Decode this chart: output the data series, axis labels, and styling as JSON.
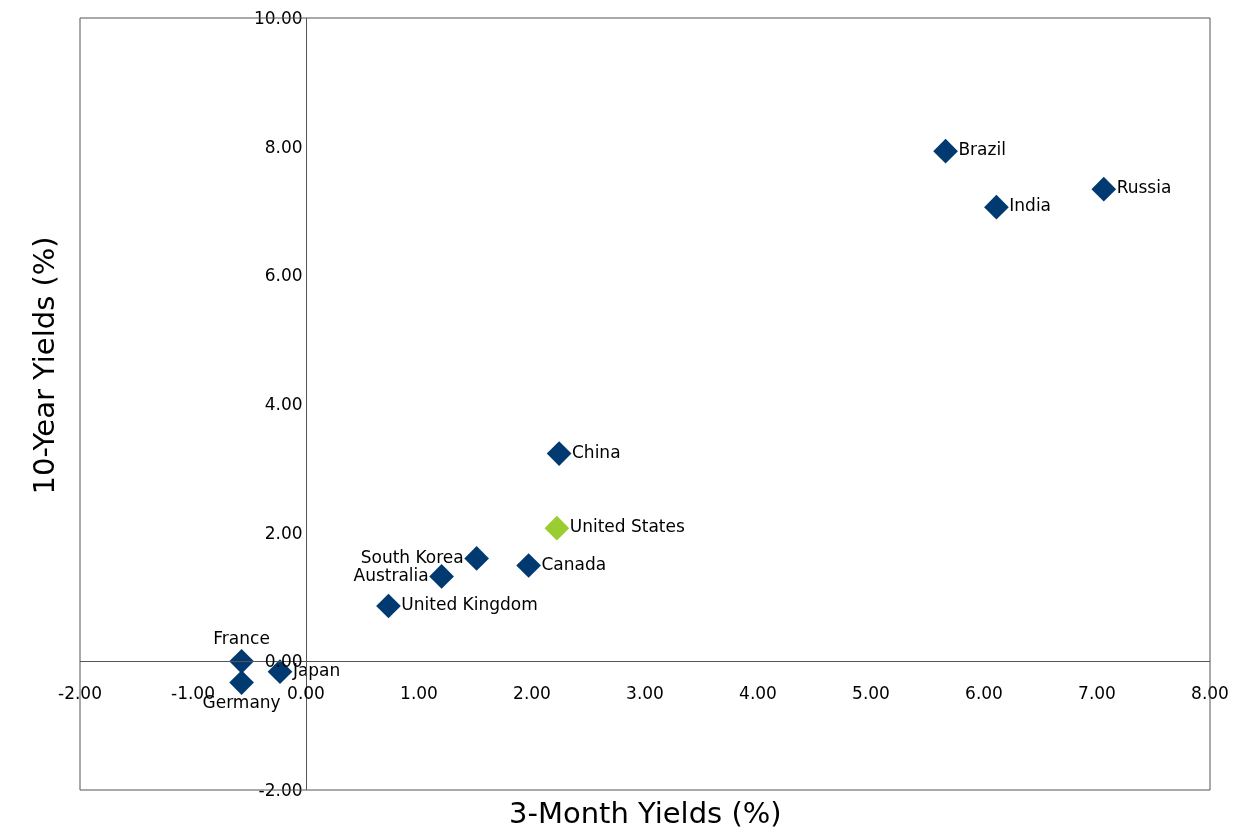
{
  "chart_data": {
    "type": "scatter",
    "xlabel": "3-Month Yields (%)",
    "ylabel": "10-Year Yields (%)",
    "xlim": [
      -2,
      8
    ],
    "xticks": [
      {
        "value": -2,
        "label": "-2.00"
      },
      {
        "value": -1,
        "label": "-1.00"
      },
      {
        "value": 0,
        "label": "0.00"
      },
      {
        "value": 1,
        "label": "1.00"
      },
      {
        "value": 2,
        "label": "2.00"
      },
      {
        "value": 3,
        "label": "3.00"
      },
      {
        "value": 4,
        "label": "4.00"
      },
      {
        "value": 5,
        "label": "5.00"
      },
      {
        "value": 6,
        "label": "6.00"
      },
      {
        "value": 7,
        "label": "7.00"
      },
      {
        "value": 8,
        "label": "8.00"
      }
    ],
    "ylim": [
      -2,
      10
    ],
    "yticks": [
      {
        "value": -2,
        "label": "-2.00"
      },
      {
        "value": 0,
        "label": "0.00"
      },
      {
        "value": 2,
        "label": "2.00"
      },
      {
        "value": 4,
        "label": "4.00"
      },
      {
        "value": 6,
        "label": "6.00"
      },
      {
        "value": 8,
        "label": "8.00"
      },
      {
        "value": 10,
        "label": "10.00"
      }
    ],
    "grid": false,
    "legend": false,
    "marker": "diamond",
    "series": [
      {
        "name": "Brazil",
        "color": "#003a70",
        "x": [
          5.66
        ],
        "values": [
          7.93
        ]
      },
      {
        "name": "India",
        "color": "#003a70",
        "x": [
          6.11
        ],
        "values": [
          7.06
        ]
      },
      {
        "name": "Russia",
        "color": "#003a70",
        "x": [
          7.06
        ],
        "values": [
          7.34
        ]
      },
      {
        "name": "China",
        "color": "#003a70",
        "x": [
          2.24
        ],
        "values": [
          3.23
        ]
      },
      {
        "name": "United States",
        "color": "#9acd32",
        "x": [
          2.22
        ],
        "values": [
          2.07
        ]
      },
      {
        "name": "South Korea",
        "color": "#003a70",
        "x": [
          1.51
        ],
        "values": [
          1.6
        ]
      },
      {
        "name": "Canada",
        "color": "#003a70",
        "x": [
          1.97
        ],
        "values": [
          1.49
        ]
      },
      {
        "name": "Australia",
        "color": "#003a70",
        "x": [
          1.2
        ],
        "values": [
          1.32
        ]
      },
      {
        "name": "United Kingdom",
        "color": "#003a70",
        "x": [
          0.73
        ],
        "values": [
          0.86
        ]
      },
      {
        "name": "France",
        "color": "#003a70",
        "x": [
          -0.57
        ],
        "values": [
          0.0
        ]
      },
      {
        "name": "Japan",
        "color": "#003a70",
        "x": [
          -0.23
        ],
        "values": [
          -0.16
        ]
      },
      {
        "name": "Germany",
        "color": "#003a70",
        "x": [
          -0.57
        ],
        "values": [
          -0.33
        ]
      }
    ]
  }
}
